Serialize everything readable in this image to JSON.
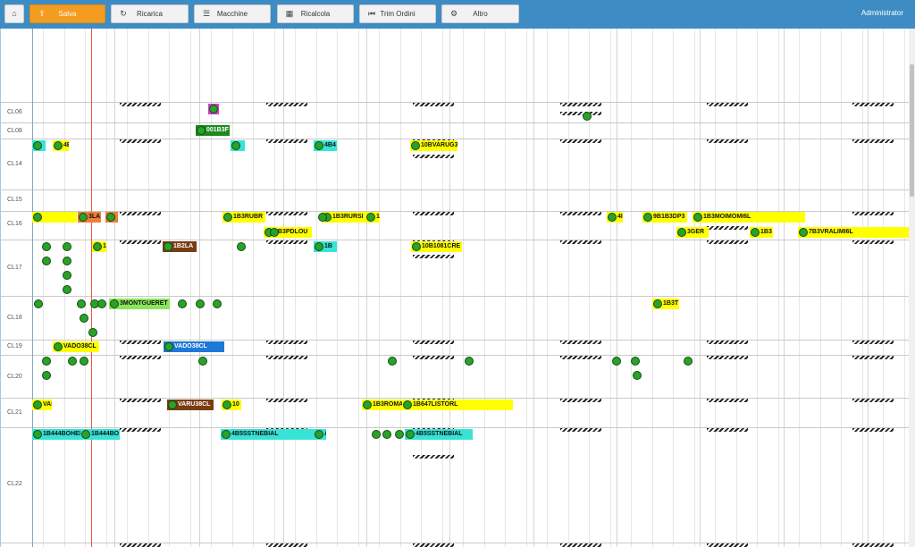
{
  "toolbar": {
    "home_icon": "home-icon",
    "buttons": [
      {
        "label": "Salva",
        "icon": "upload-icon",
        "active": true
      },
      {
        "label": "Ricarica",
        "icon": "refresh-icon",
        "active": false
      },
      {
        "label": "Macchine",
        "icon": "list-icon",
        "active": false
      },
      {
        "label": "Ricalcola",
        "icon": "calculator-icon",
        "active": false
      },
      {
        "label": "Trim Ordini",
        "icon": "skip-back-icon",
        "active": false
      },
      {
        "label": "Altro",
        "icon": "gear-icon",
        "active": false
      }
    ],
    "user": "Administrator"
  },
  "colors": {
    "topbar": "#3d8dc4",
    "active_button": "#f39c1f",
    "yellow": "#ffff00",
    "cyan": "#37e3d6",
    "orange": "#f07d3a",
    "brown": "#7a3c12",
    "blue": "#1e78d8",
    "green": "#2aa12a",
    "magenta": "#d43ad8",
    "lightgreen": "#8ae65a",
    "now_line": "#e9573f"
  },
  "rows": [
    "CL06",
    "CL08",
    "CL14",
    "CL15",
    "CL16",
    "CL17",
    "CL18",
    "CL19",
    "CL20",
    "CL21",
    "CL22"
  ],
  "jobs": [
    {
      "row": "CL06",
      "label": "",
      "color": "magenta"
    },
    {
      "row": "CL06",
      "label": "",
      "color": "none"
    },
    {
      "row": "CL08",
      "label": "001B3F",
      "color": "darkgreen"
    },
    {
      "row": "CL14",
      "label": "",
      "color": "cyan"
    },
    {
      "row": "CL14",
      "label": "4E",
      "color": "yellow"
    },
    {
      "row": "CL14",
      "label": "",
      "color": "cyan"
    },
    {
      "row": "CL14",
      "label": "4B4",
      "color": "cyan"
    },
    {
      "row": "CL14",
      "label": "10BVARUG3",
      "color": "yellow"
    },
    {
      "row": "CL16",
      "label": "",
      "color": "yellow"
    },
    {
      "row": "CL16",
      "label": "3LA",
      "color": "orange"
    },
    {
      "row": "CL16",
      "label": "",
      "color": "orange"
    },
    {
      "row": "CL16",
      "label": "1B3RUBR",
      "color": "yellow"
    },
    {
      "row": "CL16",
      "label": "1B3RURSI",
      "color": "yellow"
    },
    {
      "row": "CL16",
      "label": "1",
      "color": "yellow"
    },
    {
      "row": "CL16",
      "label": "4I",
      "color": "yellow"
    },
    {
      "row": "CL16",
      "label": "9B1B3DP3",
      "color": "yellow"
    },
    {
      "row": "CL16",
      "label": "1B3MOIMOMI6L",
      "color": "yellow"
    },
    {
      "row": "CL16",
      "label": "1B3PDLOU",
      "color": "yellow"
    },
    {
      "row": "CL16",
      "label": "3GER",
      "color": "yellow"
    },
    {
      "row": "CL16",
      "label": "1B3",
      "color": "yellow"
    },
    {
      "row": "CL16",
      "label": "7B3VRALIMI6L",
      "color": "yellow"
    },
    {
      "row": "CL17",
      "label": "1",
      "color": "yellow"
    },
    {
      "row": "CL17",
      "label": "1B2LA",
      "color": "brown"
    },
    {
      "row": "CL17",
      "label": "1B",
      "color": "cyan"
    },
    {
      "row": "CL17",
      "label": "10B1081CRE",
      "color": "yellow"
    },
    {
      "row": "CL18",
      "label": "3MONTGUERET",
      "color": "lightgreen"
    },
    {
      "row": "CL18",
      "label": "1B3T",
      "color": "yellow"
    },
    {
      "row": "CL19",
      "label": "VADO38CL",
      "color": "yellow"
    },
    {
      "row": "CL19",
      "label": "VADO38CL",
      "color": "blue"
    },
    {
      "row": "CL21",
      "label": "VAD",
      "color": "yellow"
    },
    {
      "row": "CL21",
      "label": "VARU38CL",
      "color": "brown"
    },
    {
      "row": "CL21",
      "label": "10",
      "color": "yellow"
    },
    {
      "row": "CL21",
      "label": "1B3ROMA",
      "color": "yellow"
    },
    {
      "row": "CL21",
      "label": "1B647LISTORL",
      "color": "yellow"
    },
    {
      "row": "CL22",
      "label": "1B444BOHEI",
      "color": "cyan"
    },
    {
      "row": "CL22",
      "label": "1B444BO",
      "color": "cyan"
    },
    {
      "row": "CL22",
      "label": "4B5SSTNEBIAL",
      "color": "cyan"
    },
    {
      "row": "CL22",
      "label": "A",
      "color": "cyan"
    },
    {
      "row": "CL22",
      "label": "4B5SSTNEBIAL",
      "color": "cyan"
    }
  ]
}
